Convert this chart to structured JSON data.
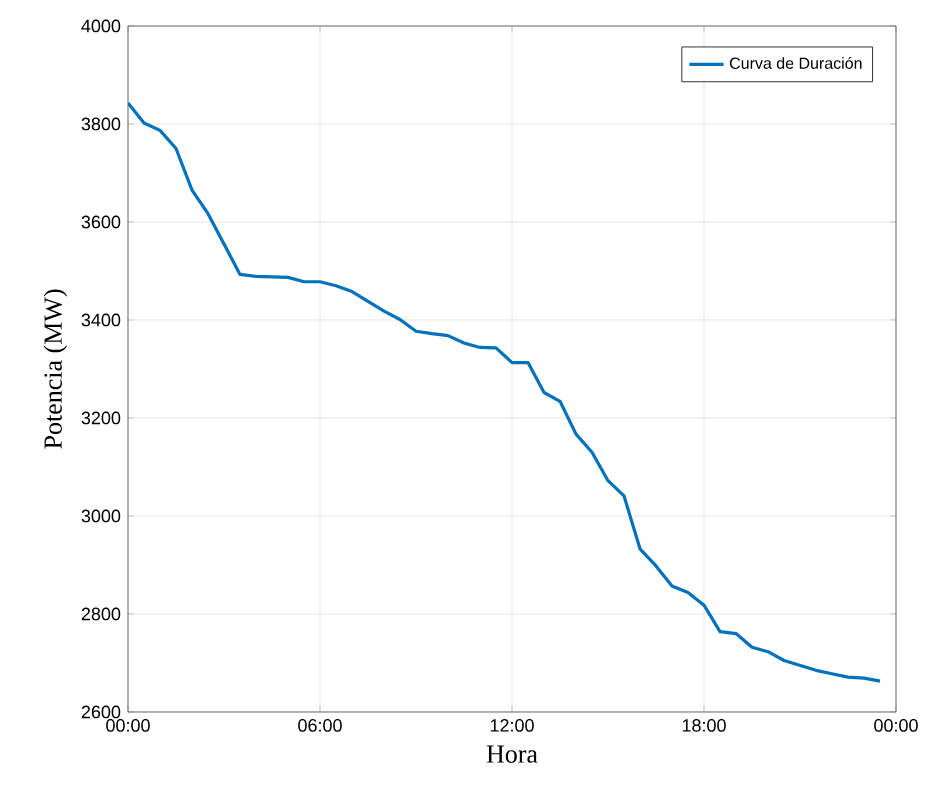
{
  "chart_data": {
    "type": "line",
    "xlabel": "Hora",
    "ylabel": "Potencia (MW)",
    "legend": "top right",
    "grid": true,
    "line_style": "solid",
    "marker": "none",
    "xlim": [
      0,
      24
    ],
    "ylim": [
      2600,
      4000
    ],
    "xticks": [
      {
        "value": 0,
        "label": "00:00"
      },
      {
        "value": 6,
        "label": "06:00"
      },
      {
        "value": 12,
        "label": "12:00"
      },
      {
        "value": 18,
        "label": "18:00"
      },
      {
        "value": 24,
        "label": "00:00"
      }
    ],
    "yticks": [
      2600,
      2800,
      3000,
      3200,
      3400,
      3600,
      3800,
      4000
    ],
    "x": [
      0,
      0.5,
      1,
      1.5,
      2,
      2.5,
      3,
      3.5,
      4,
      4.5,
      5,
      5.5,
      6,
      6.5,
      7,
      7.5,
      8,
      8.5,
      9,
      9.5,
      10,
      10.5,
      11,
      11.5,
      12,
      12.5,
      13,
      13.5,
      14,
      14.5,
      15,
      15.5,
      16,
      16.5,
      17,
      17.5,
      18,
      18.5,
      19,
      19.5,
      20,
      20.5,
      21,
      21.5,
      22,
      22.5,
      23,
      23.5
    ],
    "series": [
      {
        "name": "Curva de Duración",
        "color": "#0072bd",
        "values": [
          3843,
          3802,
          3787,
          3750,
          3665,
          3617,
          3555,
          3493,
          3489,
          3488,
          3487,
          3478,
          3478,
          3470,
          3458,
          3438,
          3418,
          3401,
          3377,
          3372,
          3368,
          3353,
          3344,
          3343,
          3313,
          3313,
          3252,
          3234,
          3167,
          3130,
          3072,
          3041,
          2933,
          2898,
          2857,
          2844,
          2818,
          2764,
          2760,
          2732,
          2723,
          2705,
          2695,
          2685,
          2678,
          2671,
          2669,
          2663
        ]
      }
    ]
  }
}
